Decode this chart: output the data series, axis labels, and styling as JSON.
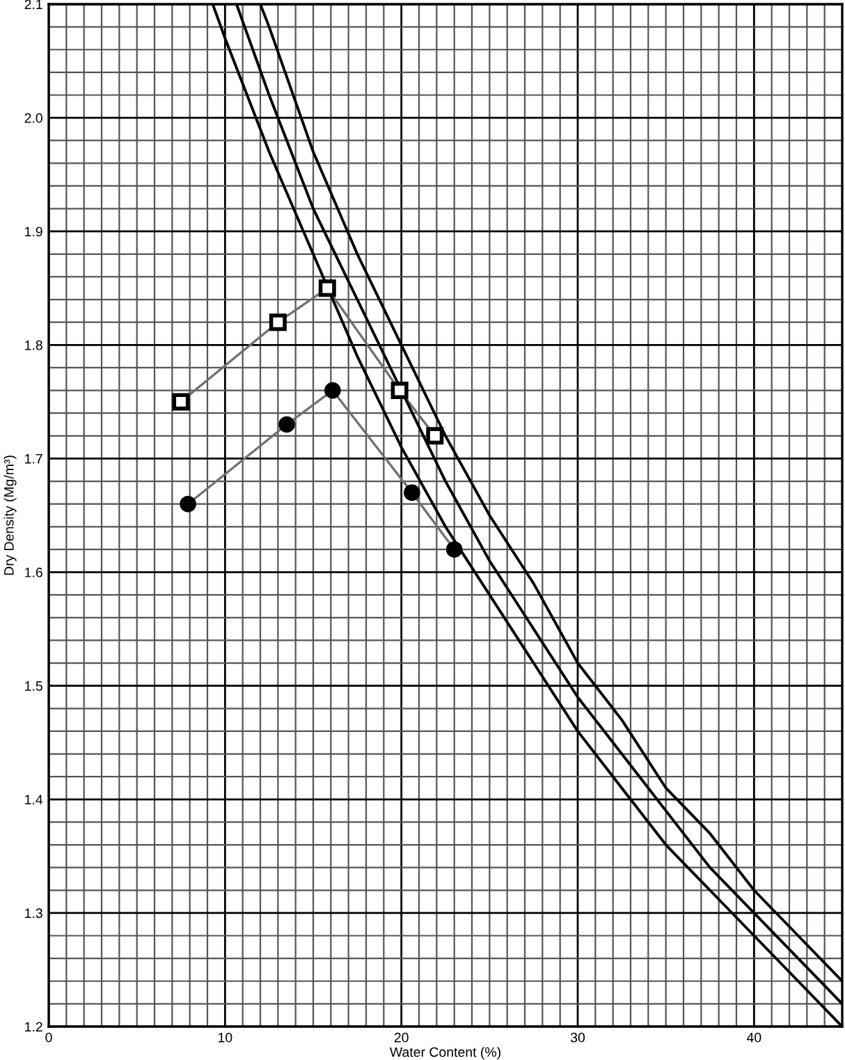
{
  "chart_data": {
    "type": "line",
    "xlabel": "Water Content (%)",
    "ylabel": "Dry Density (Mg/m³)",
    "xlim": [
      0,
      45
    ],
    "ylim": [
      1.2,
      2.1
    ],
    "xticks": [
      0,
      10,
      20,
      30,
      40
    ],
    "yticks": [
      1.2,
      1.3,
      1.4,
      1.5,
      1.6,
      1.7,
      1.8,
      1.9,
      {
        "value": 2.0,
        "label": "2.0"
      },
      2.1
    ],
    "grid": true,
    "legend": false,
    "series": [
      {
        "color": "#707070",
        "marker": "square",
        "x": [
          7.5,
          13,
          15.8,
          19.9,
          21.9
        ],
        "values": [
          1.75,
          1.82,
          1.85,
          1.76,
          1.72
        ]
      },
      {
        "color": "#707070",
        "marker": "circle",
        "x": [
          7.9,
          13.5,
          16.1,
          20.6,
          23.0
        ],
        "values": [
          1.66,
          1.73,
          1.76,
          1.67,
          1.62
        ]
      },
      {
        "color": "#000000",
        "marker": "none",
        "x": [
          9.3,
          10,
          12.5,
          15,
          17.5,
          20,
          22.5,
          25,
          27.5,
          30,
          32.5,
          35,
          37.5,
          40,
          42.5,
          45
        ],
        "values": [
          2.1,
          2.07,
          1.97,
          1.88,
          1.79,
          1.71,
          1.64,
          1.58,
          1.52,
          1.46,
          1.41,
          1.36,
          1.32,
          1.28,
          1.24,
          1.2
        ]
      },
      {
        "color": "#000000",
        "marker": "none",
        "x": [
          10.65,
          12.5,
          15,
          17.5,
          20,
          22.5,
          25,
          27.5,
          30,
          32.5,
          35,
          37.5,
          40,
          42.5,
          45
        ],
        "values": [
          2.1,
          2.02,
          1.92,
          1.84,
          1.76,
          1.68,
          1.61,
          1.55,
          1.49,
          1.44,
          1.39,
          1.34,
          1.3,
          1.26,
          1.22
        ]
      },
      {
        "color": "#000000",
        "marker": "none",
        "x": [
          12,
          12.5,
          15,
          17.5,
          20,
          22.5,
          25,
          27.5,
          30,
          32.5,
          35,
          37.5,
          40,
          42.5,
          45
        ],
        "values": [
          2.1,
          2.08,
          1.97,
          1.88,
          1.8,
          1.72,
          1.65,
          1.59,
          1.52,
          1.47,
          1.41,
          1.37,
          1.32,
          1.28,
          1.24
        ]
      }
    ]
  }
}
